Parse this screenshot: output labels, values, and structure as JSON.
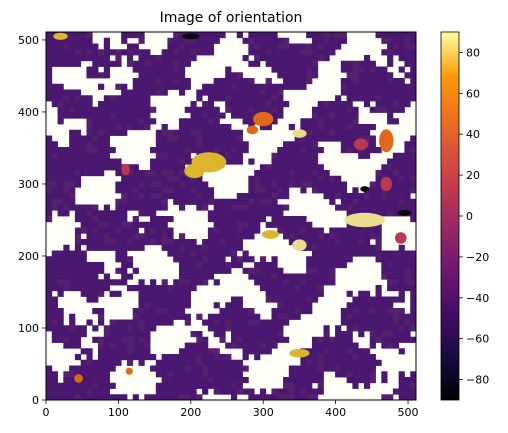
{
  "chart_data": {
    "type": "heatmap",
    "title": "Image of orientation",
    "xlabel": "",
    "ylabel": "",
    "xlim": [
      0,
      511
    ],
    "ylim": [
      0,
      511
    ],
    "x_ticks": [
      0,
      100,
      200,
      300,
      400,
      500
    ],
    "y_ticks": [
      0,
      100,
      200,
      300,
      400,
      500
    ],
    "colorbar": {
      "colormap": "inferno",
      "range": [
        -90,
        90
      ],
      "ticks": [
        80,
        60,
        40,
        20,
        0,
        -20,
        -40,
        -60,
        -80
      ]
    },
    "palette": {
      "background": "#fffef7",
      "dominant": "#4a1870",
      "dominant_alt": "#55206e",
      "accent_red": "#b83a50",
      "accent_orange": "#e1681a",
      "accent_yellow": "#dcb52c",
      "accent_pale": "#e8de8c",
      "accent_dark": "#0a0510"
    }
  }
}
